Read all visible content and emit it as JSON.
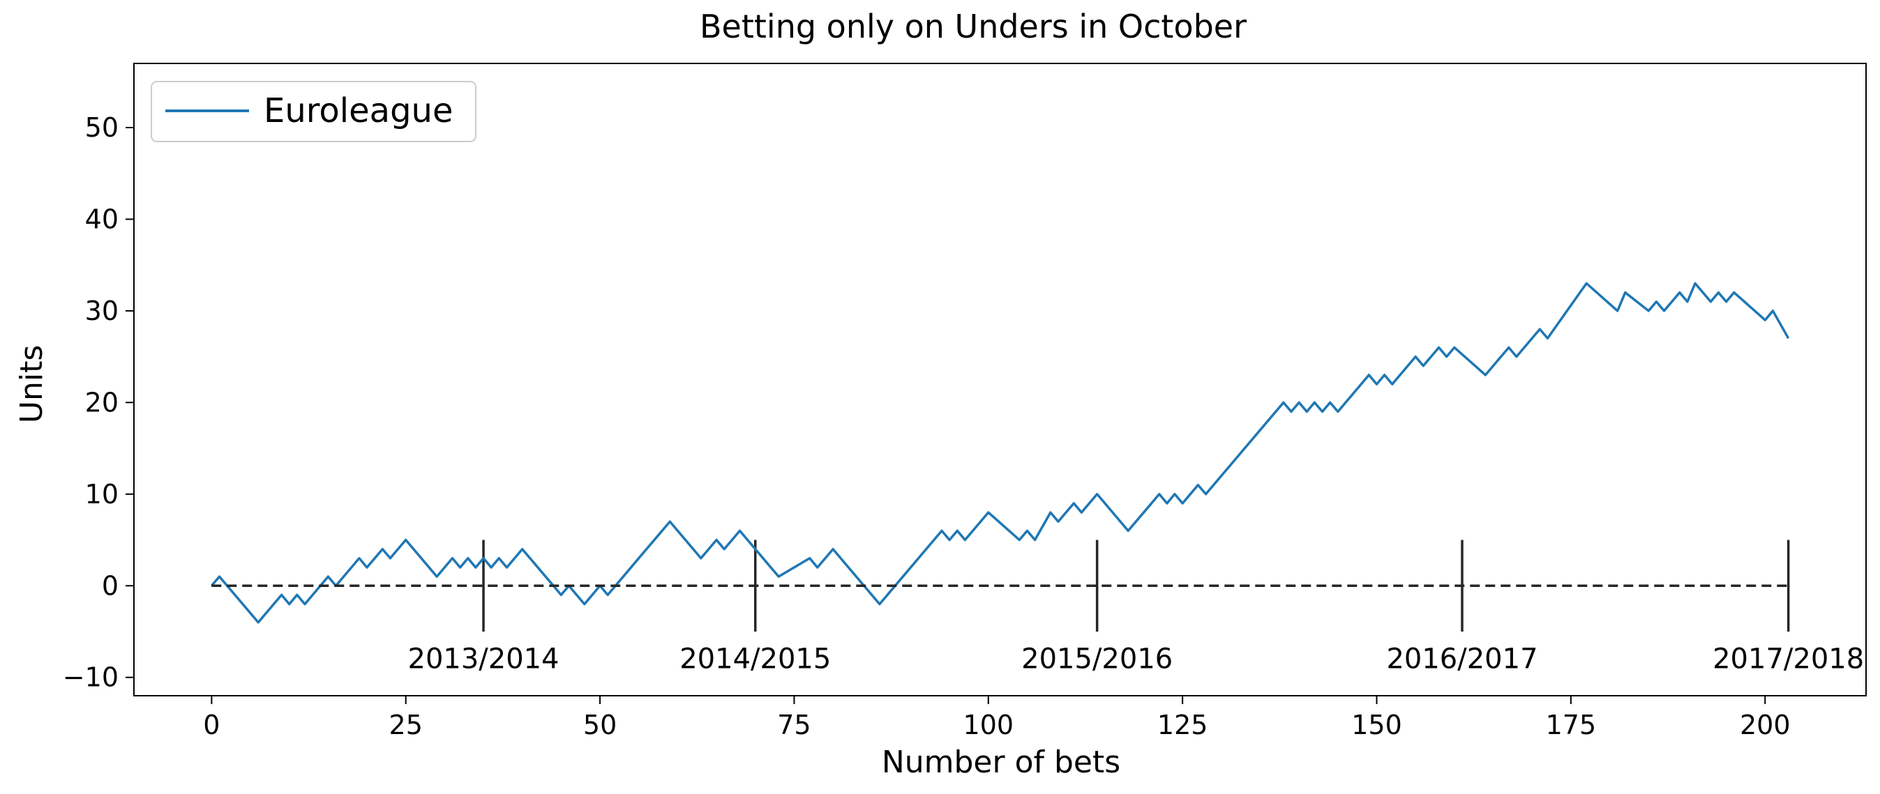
{
  "chart_data": {
    "type": "line",
    "title": "Betting only on Unders in October",
    "xlabel": "Number of bets",
    "ylabel": "Units",
    "xlim": [
      -10,
      213
    ],
    "ylim": [
      -12,
      57
    ],
    "xticks": [
      0,
      25,
      50,
      75,
      100,
      125,
      150,
      175,
      200
    ],
    "yticks": [
      -10,
      0,
      10,
      20,
      30,
      40,
      50
    ],
    "xtick_labels": [
      "0",
      "25",
      "50",
      "75",
      "100",
      "125",
      "150",
      "175",
      "200"
    ],
    "ytick_labels": [
      "−10",
      "0",
      "10",
      "20",
      "30",
      "40",
      "50"
    ],
    "grid": false,
    "legend_position": "upper-left",
    "series": [
      {
        "name": "Euroleague",
        "color": "#1f77b4",
        "x": [
          0,
          1,
          6,
          9,
          10,
          11,
          12,
          15,
          16,
          19,
          20,
          22,
          23,
          25,
          29,
          31,
          32,
          33,
          34,
          35,
          36,
          37,
          38,
          40,
          45,
          46,
          48,
          50,
          51,
          52,
          55,
          59,
          63,
          65,
          66,
          68,
          72,
          73,
          77,
          78,
          80,
          86,
          94,
          95,
          96,
          97,
          100,
          104,
          105,
          106,
          108,
          109,
          111,
          112,
          114,
          118,
          122,
          123,
          124,
          125,
          127,
          128,
          138,
          139,
          140,
          141,
          142,
          143,
          144,
          145,
          149,
          150,
          151,
          152,
          155,
          156,
          158,
          159,
          160,
          164,
          167,
          168,
          171,
          172,
          177,
          181,
          182,
          185,
          186,
          187,
          189,
          190,
          191,
          193,
          194,
          195,
          196,
          200,
          201,
          203
        ],
        "y": [
          0,
          1,
          -4,
          -1,
          -2,
          -1,
          -2,
          1,
          0,
          3,
          2,
          4,
          3,
          5,
          1,
          3,
          2,
          3,
          2,
          3,
          2,
          3,
          2,
          4,
          -1,
          0,
          -2,
          0,
          -1,
          0,
          3,
          7,
          3,
          5,
          4,
          6,
          2,
          1,
          3,
          2,
          4,
          -2,
          6,
          5,
          6,
          5,
          8,
          5,
          6,
          5,
          8,
          7,
          9,
          8,
          10,
          6,
          10,
          9,
          10,
          9,
          11,
          10,
          20,
          19,
          20,
          19,
          20,
          19,
          20,
          19,
          23,
          22,
          23,
          22,
          25,
          24,
          26,
          25,
          26,
          23,
          26,
          25,
          28,
          27,
          33,
          30,
          32,
          30,
          31,
          30,
          32,
          31,
          33,
          31,
          32,
          31,
          32,
          29,
          30,
          27
        ]
      },
      {
        "name": "",
        "color": "#262626",
        "style": "dashed",
        "x": [
          0,
          203
        ],
        "y": [
          0,
          0
        ]
      }
    ],
    "season_markers": [
      {
        "x": 35,
        "label": "2013/2014"
      },
      {
        "x": 70,
        "label": "2014/2015"
      },
      {
        "x": 114,
        "label": "2015/2016"
      },
      {
        "x": 161,
        "label": "2016/2017"
      },
      {
        "x": 203,
        "label": "2017/2018"
      }
    ],
    "season_marker_range": [
      -5,
      5
    ]
  }
}
